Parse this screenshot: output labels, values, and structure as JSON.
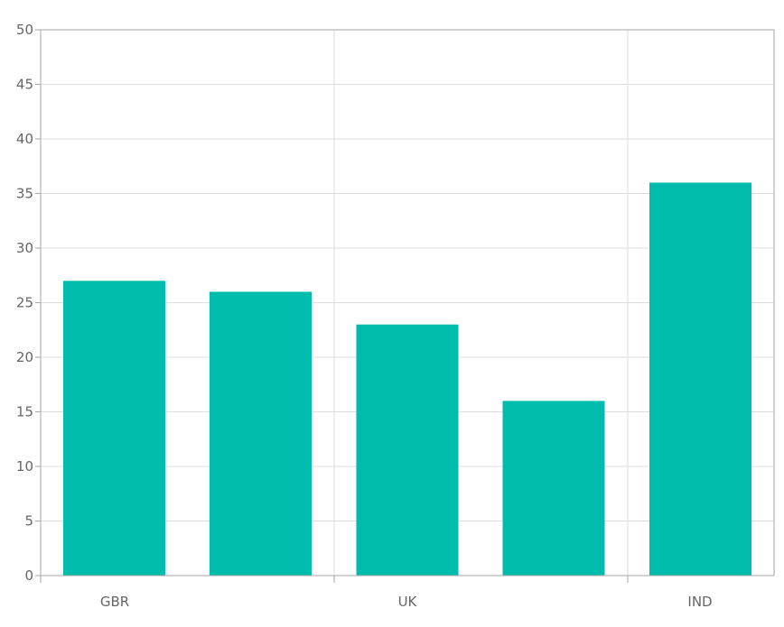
{
  "chart_data": {
    "type": "bar",
    "categories": [
      "GBR",
      "",
      "UK",
      "",
      "IND"
    ],
    "category_labels": [
      "GBR",
      "UK",
      "IND"
    ],
    "values": [
      27,
      26,
      23,
      16,
      36
    ],
    "title": "",
    "xlabel": "",
    "ylabel": "",
    "ylim": [
      0,
      50
    ],
    "y_ticks": [
      "0",
      "5",
      "10",
      "15",
      "20",
      "25",
      "30",
      "35",
      "40",
      "45",
      "50"
    ],
    "grid": true,
    "legend": "none",
    "bar_color": "#00bcad"
  }
}
